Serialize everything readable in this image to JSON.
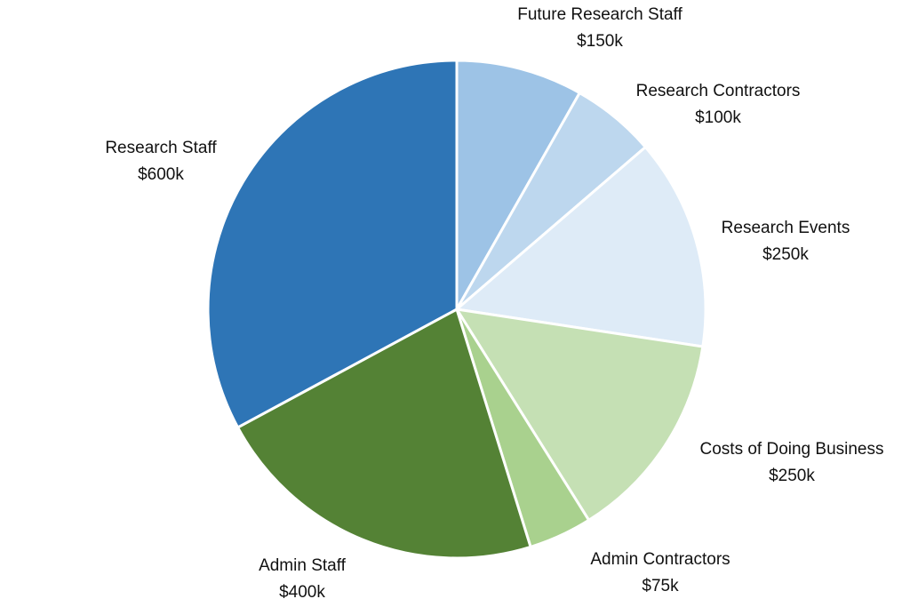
{
  "chart_data": {
    "type": "pie",
    "title": "",
    "start_angle": "12 o'clock, clockwise",
    "slices": [
      {
        "label": "Future Research Staff",
        "value": 150,
        "value_label": "$150k",
        "color": "#9DC3E6"
      },
      {
        "label": "Research Contractors",
        "value": 100,
        "value_label": "$100k",
        "color": "#BDD7EE"
      },
      {
        "label": "Research Events",
        "value": 250,
        "value_label": "$250k",
        "color": "#DEEBF7"
      },
      {
        "label": "Costs of Doing Business",
        "value": 250,
        "value_label": "$250k",
        "color": "#C5E0B4"
      },
      {
        "label": "Admin Contractors",
        "value": 75,
        "value_label": "$75k",
        "color": "#A9D18E"
      },
      {
        "label": "Admin Staff",
        "value": 400,
        "value_label": "$400k",
        "color": "#548235"
      },
      {
        "label": "Research Staff",
        "value": 600,
        "value_label": "$600k",
        "color": "#2E75B6"
      }
    ]
  }
}
